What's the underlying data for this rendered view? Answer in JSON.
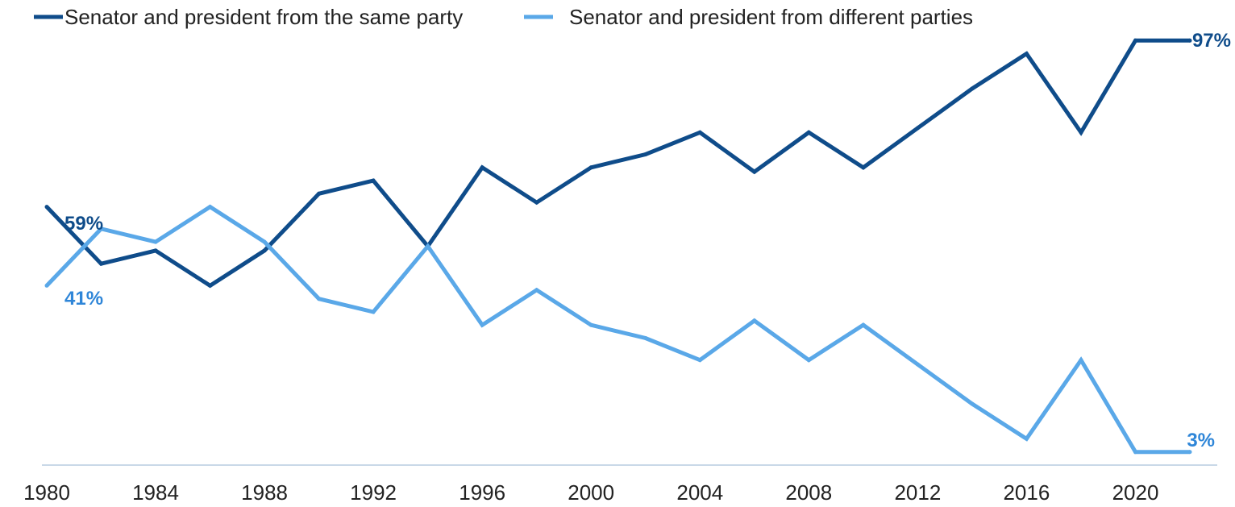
{
  "chart_data": {
    "type": "line",
    "title": "",
    "xlabel": "",
    "ylabel": "",
    "x": [
      1980,
      1982,
      1984,
      1986,
      1988,
      1990,
      1992,
      1994,
      1996,
      1998,
      2000,
      2002,
      2004,
      2006,
      2008,
      2010,
      2012,
      2014,
      2016,
      2018,
      2020,
      2022
    ],
    "x_ticks": [
      "1980",
      "1984",
      "1988",
      "1992",
      "1996",
      "2000",
      "2004",
      "2008",
      "2012",
      "2016",
      "2020"
    ],
    "ylim": [
      0,
      100
    ],
    "y_axis_visible": false,
    "grid": false,
    "legend_position": "top-left",
    "series": [
      {
        "name": "Senator and president from the same party",
        "color": "#0f4c8a",
        "values": [
          59,
          46,
          49,
          41,
          49,
          62,
          65,
          50,
          68,
          60,
          68,
          71,
          76,
          67,
          76,
          68,
          77,
          86,
          94,
          76,
          97,
          97
        ],
        "end_labels": {
          "first": "59%",
          "last": "97%"
        }
      },
      {
        "name": "Senator and president from different parties",
        "color": "#5aa8e8",
        "values": [
          41,
          54,
          51,
          59,
          51,
          38,
          35,
          50,
          32,
          40,
          32,
          29,
          24,
          33,
          24,
          32,
          23,
          14,
          6,
          24,
          3,
          3
        ],
        "end_labels": {
          "first": "41%",
          "last": "3%"
        }
      }
    ]
  }
}
